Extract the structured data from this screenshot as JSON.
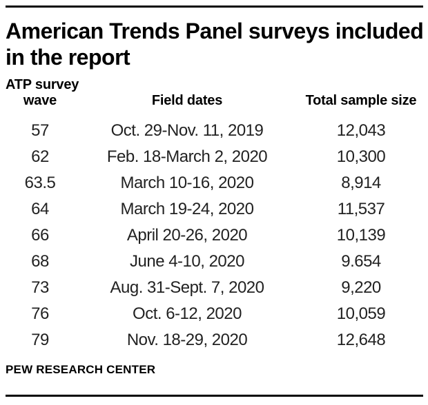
{
  "chart_data": {
    "type": "table",
    "title": "American Trends Panel surveys included in the report",
    "title_lines": [
      "American Trends Panel surveys included",
      "in the report"
    ],
    "column_headers": {
      "wave_line1": "ATP survey",
      "wave_line2": "wave",
      "field_dates": "Field dates",
      "sample_size": "Total sample size"
    },
    "rows": [
      [
        "57",
        "Oct. 29-Nov. 11, 2019",
        "12,043"
      ],
      [
        "62",
        "Feb. 18-March 2, 2020",
        "10,300"
      ],
      [
        "63.5",
        "March 10-16, 2020",
        "8,914"
      ],
      [
        "64",
        "March 19-24, 2020",
        "11,537"
      ],
      [
        "66",
        "April 20-26, 2020",
        "10,139"
      ],
      [
        "68",
        "June 4-10, 2020",
        "9.654"
      ],
      [
        "73",
        "Aug. 31-Sept. 7, 2020",
        "9,220"
      ],
      [
        "76",
        "Oct. 6-12, 2020",
        "10,059"
      ],
      [
        "79",
        "Nov. 18-29, 2020",
        "12,648"
      ]
    ],
    "source": "PEW RESEARCH CENTER",
    "layout": {
      "legend": "none",
      "grid": "off"
    }
  },
  "colors": {
    "background": "#ffffff",
    "rule": "#000000",
    "title_text": "#000000",
    "body_text": "#222222"
  }
}
